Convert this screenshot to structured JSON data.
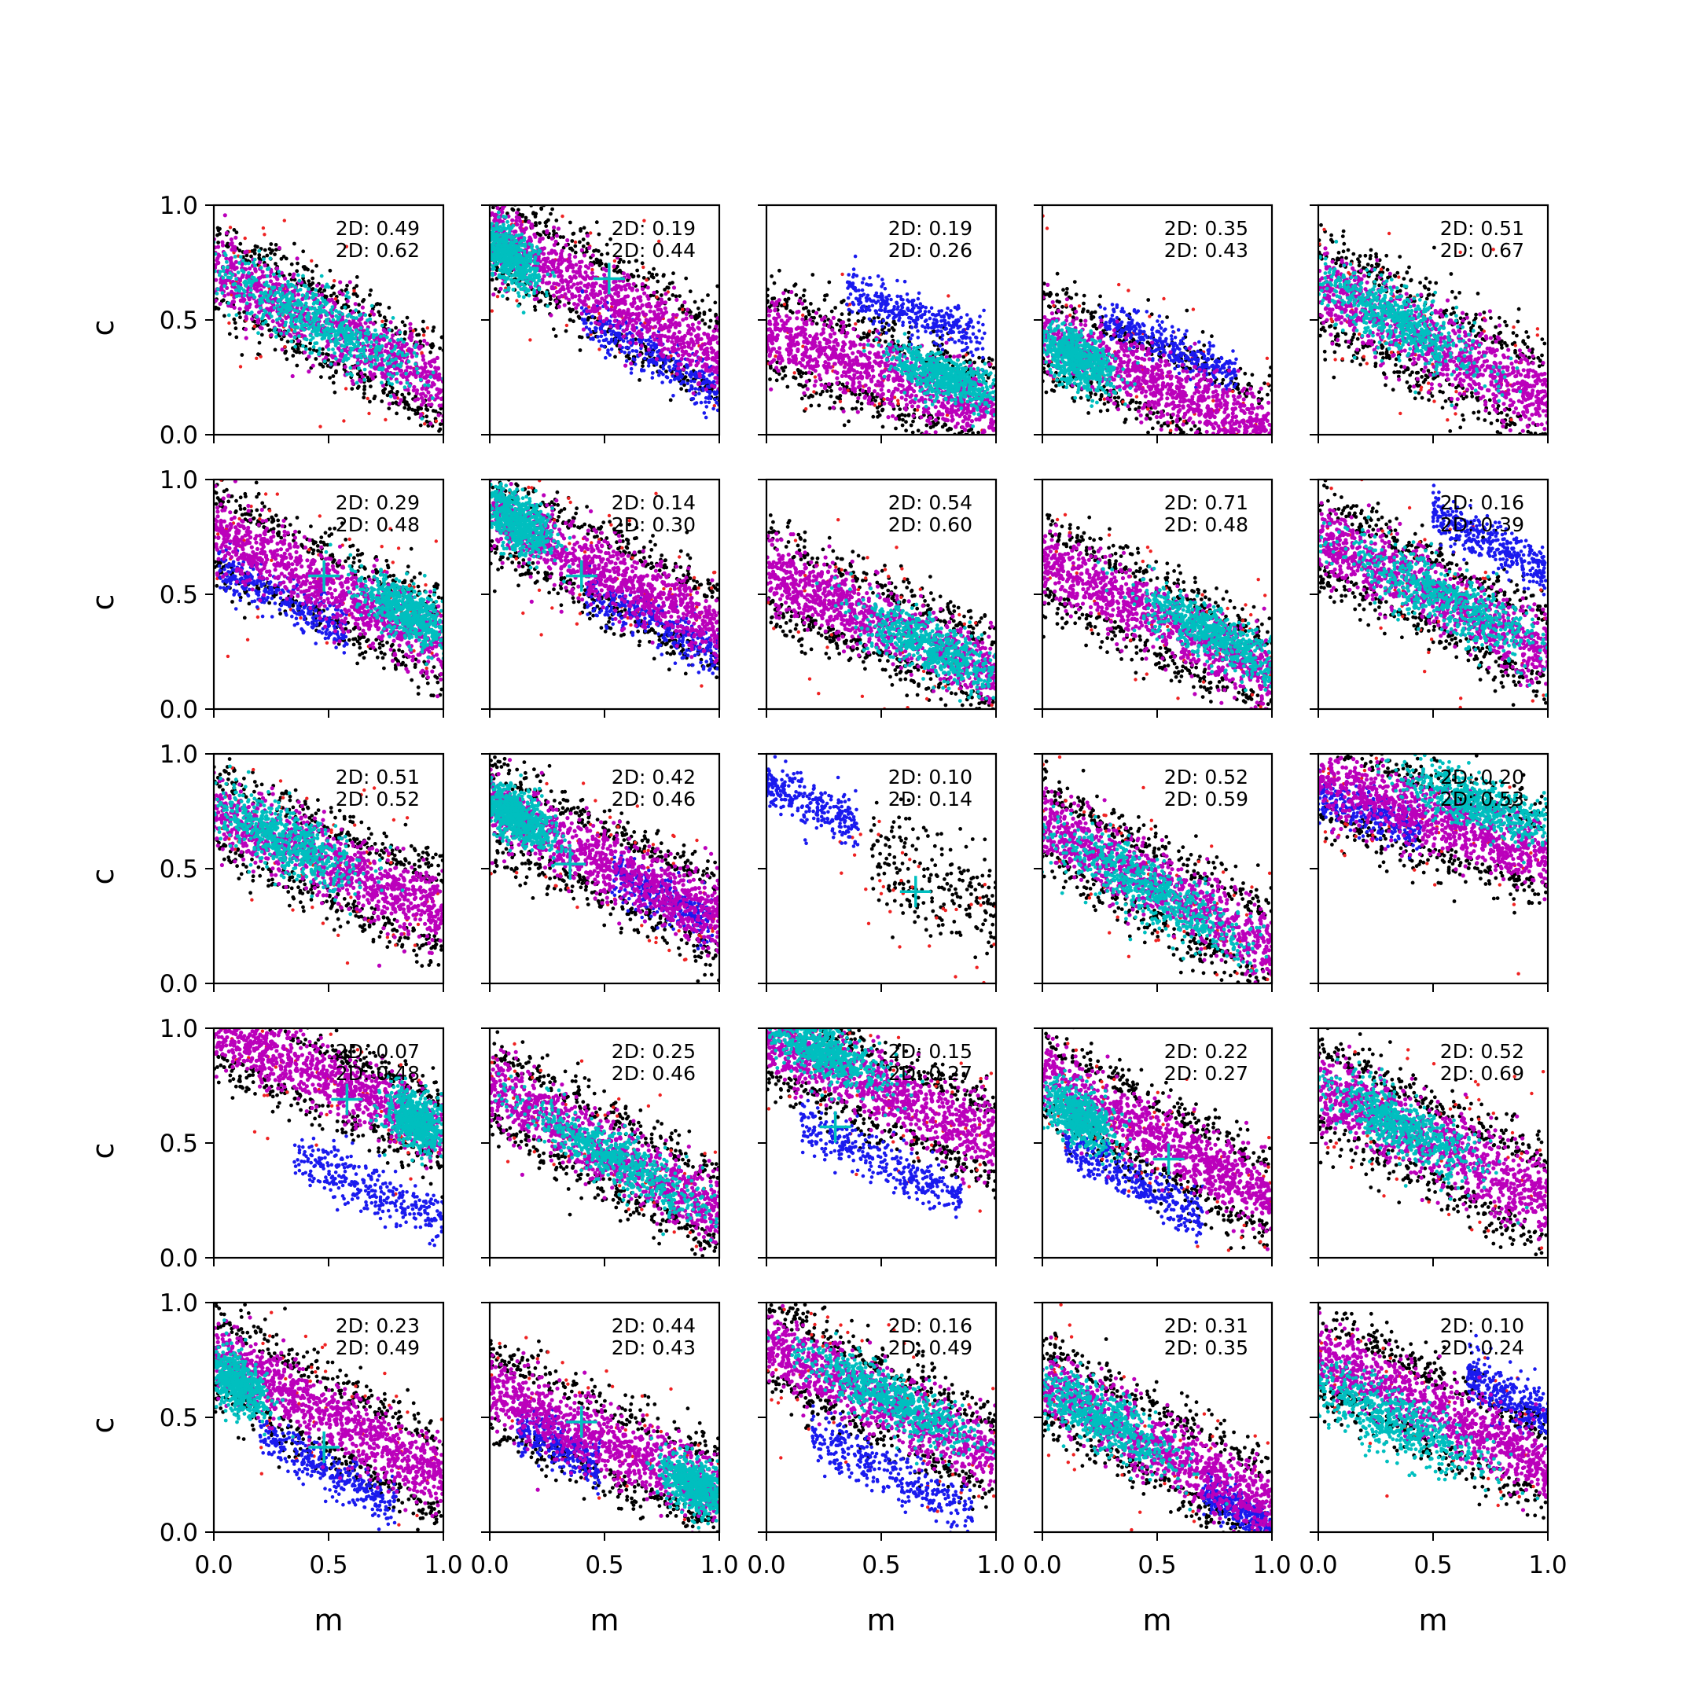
{
  "chart_data": {
    "type": "scatter",
    "layout": "5x5 grid of subplots",
    "xlabel": "m",
    "ylabel": "c",
    "xlim": [
      0.0,
      1.0
    ],
    "ylim": [
      0.0,
      1.0
    ],
    "xticks": [
      "0.0",
      "0.5",
      "1.0"
    ],
    "yticks": [
      "0.0",
      "0.5",
      "1.0"
    ],
    "colors": {
      "black": "#000000",
      "red": "#ee2222",
      "blue": "#1a1aee",
      "magenta": "#bb00bb",
      "cyan": "#00bfbf",
      "marker": "#00bfbf"
    },
    "series_order": [
      "black",
      "red",
      "blue",
      "magenta",
      "cyan"
    ],
    "panels": [
      {
        "row": 0,
        "col": 0,
        "annotations": [
          "2D: 0.49",
          "2D: 0.62"
        ],
        "marker": null,
        "band": {
          "c0": 0.72,
          "slope": -0.5,
          "width": 0.2
        },
        "blue": null,
        "cyan": {
          "m": 0.45,
          "c": 0.5,
          "len": 0.4,
          "width": 0.07
        }
      },
      {
        "row": 0,
        "col": 1,
        "annotations": [
          "2D: 0.19",
          "2D: 0.44"
        ],
        "marker": {
          "m": 0.52,
          "c": 0.68
        },
        "band": {
          "c0": 0.88,
          "slope": -0.55,
          "width": 0.2
        },
        "blue": {
          "m": 0.7,
          "c": 0.35,
          "len": 0.3,
          "width": 0.05
        },
        "cyan": {
          "m": 0.08,
          "c": 0.78,
          "len": 0.12,
          "width": 0.06
        }
      },
      {
        "row": 0,
        "col": 2,
        "annotations": [
          "2D: 0.19",
          "2D: 0.26"
        ],
        "marker": null,
        "band": {
          "c0": 0.45,
          "slope": -0.35,
          "width": 0.2
        },
        "blue": {
          "m": 0.65,
          "c": 0.52,
          "len": 0.3,
          "width": 0.05
        },
        "cyan": {
          "m": 0.78,
          "c": 0.25,
          "len": 0.22,
          "width": 0.05
        }
      },
      {
        "row": 0,
        "col": 3,
        "annotations": [
          "2D: 0.35",
          "2D: 0.43"
        ],
        "marker": null,
        "band": {
          "c0": 0.45,
          "slope": -0.45,
          "width": 0.2
        },
        "blue": {
          "m": 0.55,
          "c": 0.38,
          "len": 0.3,
          "width": 0.04
        },
        "cyan": {
          "m": 0.15,
          "c": 0.33,
          "len": 0.15,
          "width": 0.06
        }
      },
      {
        "row": 0,
        "col": 4,
        "annotations": [
          "2D: 0.51",
          "2D: 0.67"
        ],
        "marker": null,
        "band": {
          "c0": 0.65,
          "slope": -0.5,
          "width": 0.22
        },
        "blue": null,
        "cyan": {
          "m": 0.35,
          "c": 0.5,
          "len": 0.32,
          "width": 0.07
        }
      },
      {
        "row": 1,
        "col": 0,
        "annotations": [
          "2D: 0.29",
          "2D: 0.48"
        ],
        "marker": {
          "m": 0.48,
          "c": 0.58
        },
        "band": {
          "c0": 0.78,
          "slope": -0.5,
          "width": 0.2
        },
        "blue": {
          "m": 0.3,
          "c": 0.48,
          "len": 0.28,
          "width": 0.05
        },
        "cyan": {
          "m": 0.85,
          "c": 0.42,
          "len": 0.18,
          "width": 0.06
        }
      },
      {
        "row": 1,
        "col": 1,
        "annotations": [
          "2D: 0.14",
          "2D: 0.30"
        ],
        "marker": {
          "m": 0.4,
          "c": 0.58
        },
        "band": {
          "c0": 0.85,
          "slope": -0.5,
          "width": 0.2
        },
        "blue": {
          "m": 0.72,
          "c": 0.38,
          "len": 0.3,
          "width": 0.05
        },
        "cyan": {
          "m": 0.12,
          "c": 0.82,
          "len": 0.15,
          "width": 0.06
        }
      },
      {
        "row": 1,
        "col": 2,
        "annotations": [
          "2D: 0.54",
          "2D: 0.60"
        ],
        "marker": null,
        "band": {
          "c0": 0.6,
          "slope": -0.45,
          "width": 0.2
        },
        "blue": null,
        "cyan": {
          "m": 0.72,
          "c": 0.27,
          "len": 0.3,
          "width": 0.06
        }
      },
      {
        "row": 1,
        "col": 3,
        "annotations": [
          "2D: 0.71",
          "2D: 0.48"
        ],
        "marker": null,
        "band": {
          "c0": 0.65,
          "slope": -0.5,
          "width": 0.2
        },
        "blue": null,
        "cyan": {
          "m": 0.75,
          "c": 0.32,
          "len": 0.3,
          "width": 0.06
        }
      },
      {
        "row": 1,
        "col": 4,
        "annotations": [
          "2D: 0.16",
          "2D: 0.39"
        ],
        "marker": null,
        "band": {
          "c0": 0.75,
          "slope": -0.5,
          "width": 0.2
        },
        "blue": {
          "m": 0.75,
          "c": 0.72,
          "len": 0.25,
          "width": 0.05
        },
        "cyan": {
          "m": 0.55,
          "c": 0.48,
          "len": 0.4,
          "width": 0.07
        }
      },
      {
        "row": 2,
        "col": 0,
        "annotations": [
          "2D: 0.51",
          "2D: 0.52"
        ],
        "marker": null,
        "band": {
          "c0": 0.75,
          "slope": -0.45,
          "width": 0.2
        },
        "blue": null,
        "cyan": {
          "m": 0.3,
          "c": 0.63,
          "len": 0.3,
          "width": 0.07
        }
      },
      {
        "row": 2,
        "col": 1,
        "annotations": [
          "2D: 0.42",
          "2D: 0.46"
        ],
        "marker": {
          "m": 0.35,
          "c": 0.52
        },
        "band": {
          "c0": 0.78,
          "slope": -0.5,
          "width": 0.2
        },
        "blue": {
          "m": 0.75,
          "c": 0.38,
          "len": 0.22,
          "width": 0.05
        },
        "cyan": {
          "m": 0.12,
          "c": 0.73,
          "len": 0.14,
          "width": 0.06
        }
      },
      {
        "row": 2,
        "col": 2,
        "annotations": [
          "2D: 0.10",
          "2D: 0.14"
        ],
        "marker": {
          "m": 0.65,
          "c": 0.4
        },
        "band": null,
        "blue": {
          "m": 0.15,
          "c": 0.8,
          "len": 0.25,
          "width": 0.05
        },
        "cyan": null
      },
      {
        "row": 2,
        "col": 3,
        "annotations": [
          "2D: 0.52",
          "2D: 0.59"
        ],
        "marker": null,
        "band": {
          "c0": 0.7,
          "slope": -0.55,
          "width": 0.2
        },
        "blue": null,
        "cyan": {
          "m": 0.48,
          "c": 0.4,
          "len": 0.4,
          "width": 0.07
        }
      },
      {
        "row": 2,
        "col": 4,
        "annotations": [
          "2D: 0.20",
          "2D: 0.53"
        ],
        "marker": null,
        "band": {
          "c0": 0.9,
          "slope": -0.35,
          "width": 0.2
        },
        "blue": {
          "m": 0.2,
          "c": 0.75,
          "len": 0.25,
          "width": 0.05
        },
        "cyan": {
          "m": 0.7,
          "c": 0.78,
          "len": 0.3,
          "width": 0.06
        }
      },
      {
        "row": 3,
        "col": 0,
        "annotations": [
          "2D: 0.07",
          "2D: 0.48"
        ],
        "marker": {
          "m": 0.58,
          "c": 0.69
        },
        "band": {
          "c0": 1.0,
          "slope": -0.45,
          "width": 0.18
        },
        "blue": {
          "m": 0.7,
          "c": 0.3,
          "len": 0.35,
          "width": 0.06
        },
        "cyan": {
          "m": 0.88,
          "c": 0.6,
          "len": 0.12,
          "width": 0.06
        }
      },
      {
        "row": 3,
        "col": 1,
        "annotations": [
          "2D: 0.25",
          "2D: 0.46"
        ],
        "marker": null,
        "band": {
          "c0": 0.75,
          "slope": -0.55,
          "width": 0.2
        },
        "blue": null,
        "cyan": {
          "m": 0.55,
          "c": 0.43,
          "len": 0.4,
          "width": 0.06
        }
      },
      {
        "row": 3,
        "col": 2,
        "annotations": [
          "2D: 0.15",
          "2D: 0.27"
        ],
        "marker": {
          "m": 0.3,
          "c": 0.57
        },
        "band": {
          "c0": 0.95,
          "slope": -0.45,
          "width": 0.2
        },
        "blue": {
          "m": 0.5,
          "c": 0.42,
          "len": 0.35,
          "width": 0.05
        },
        "cyan": {
          "m": 0.25,
          "c": 0.9,
          "len": 0.25,
          "width": 0.06
        }
      },
      {
        "row": 3,
        "col": 3,
        "annotations": [
          "2D: 0.22",
          "2D: 0.27"
        ],
        "marker": {
          "m": 0.55,
          "c": 0.43
        },
        "band": {
          "c0": 0.8,
          "slope": -0.55,
          "width": 0.2
        },
        "blue": {
          "m": 0.4,
          "c": 0.33,
          "len": 0.3,
          "width": 0.05
        },
        "cyan": {
          "m": 0.15,
          "c": 0.62,
          "len": 0.15,
          "width": 0.06
        }
      },
      {
        "row": 3,
        "col": 4,
        "annotations": [
          "2D: 0.52",
          "2D: 0.69"
        ],
        "marker": null,
        "band": {
          "c0": 0.75,
          "slope": -0.5,
          "width": 0.22
        },
        "blue": null,
        "cyan": {
          "m": 0.35,
          "c": 0.58,
          "len": 0.32,
          "width": 0.07
        }
      },
      {
        "row": 4,
        "col": 0,
        "annotations": [
          "2D: 0.23",
          "2D: 0.49"
        ],
        "marker": {
          "m": 0.48,
          "c": 0.37
        },
        "band": {
          "c0": 0.78,
          "slope": -0.55,
          "width": 0.2
        },
        "blue": {
          "m": 0.5,
          "c": 0.27,
          "len": 0.3,
          "width": 0.05
        },
        "cyan": {
          "m": 0.1,
          "c": 0.65,
          "len": 0.12,
          "width": 0.06
        }
      },
      {
        "row": 4,
        "col": 1,
        "annotations": [
          "2D: 0.44",
          "2D: 0.43"
        ],
        "marker": {
          "m": 0.4,
          "c": 0.48
        },
        "band": {
          "c0": 0.62,
          "slope": -0.45,
          "width": 0.2
        },
        "blue": {
          "m": 0.3,
          "c": 0.38,
          "len": 0.18,
          "width": 0.05
        },
        "cyan": {
          "m": 0.9,
          "c": 0.2,
          "len": 0.14,
          "width": 0.06
        }
      },
      {
        "row": 4,
        "col": 2,
        "annotations": [
          "2D: 0.16",
          "2D: 0.49"
        ],
        "marker": null,
        "band": {
          "c0": 0.82,
          "slope": -0.5,
          "width": 0.2
        },
        "blue": {
          "m": 0.55,
          "c": 0.25,
          "len": 0.35,
          "width": 0.06
        },
        "cyan": {
          "m": 0.55,
          "c": 0.58,
          "len": 0.35,
          "width": 0.06
        }
      },
      {
        "row": 4,
        "col": 3,
        "annotations": [
          "2D: 0.31",
          "2D: 0.35"
        ],
        "marker": null,
        "band": {
          "c0": 0.65,
          "slope": -0.55,
          "width": 0.2
        },
        "blue": {
          "m": 0.85,
          "c": 0.1,
          "len": 0.15,
          "width": 0.04
        },
        "cyan": {
          "m": 0.25,
          "c": 0.5,
          "len": 0.28,
          "width": 0.07
        }
      },
      {
        "row": 4,
        "col": 4,
        "annotations": [
          "2D: 0.10",
          "2D: 0.24"
        ],
        "marker": null,
        "band": {
          "c0": 0.78,
          "slope": -0.5,
          "width": 0.2
        },
        "blue": {
          "m": 0.85,
          "c": 0.58,
          "len": 0.2,
          "width": 0.06
        },
        "cyan": {
          "m": 0.3,
          "c": 0.5,
          "len": 0.35,
          "width": 0.07
        }
      }
    ]
  }
}
